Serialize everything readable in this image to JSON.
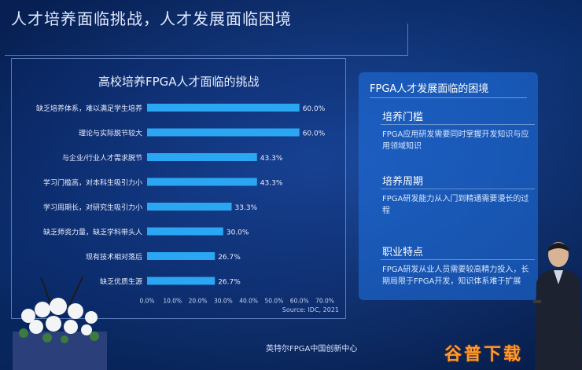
{
  "slide": {
    "title": "人才培养面临挑战，人才发展面临困境",
    "footer": "英特尔FPGA中国创新中心"
  },
  "chart": {
    "title": "高校培养FPGA人才面临的挑战",
    "source": "Source: IDC, 2021"
  },
  "chart_data": {
    "type": "bar",
    "orientation": "horizontal",
    "categories": [
      "缺乏培养体系，难以满足学生培养",
      "理论与实际脱节较大",
      "与企业/行业人才需求脱节",
      "学习门槛高，对本科生吸引力小",
      "学习周期长，对研究生吸引力小",
      "缺乏师资力量，缺乏学科带头人",
      "现有技术相对落后",
      "缺乏优质生源"
    ],
    "values": [
      60.0,
      60.0,
      43.3,
      43.3,
      33.3,
      30.0,
      26.7,
      26.7
    ],
    "value_labels": [
      "60.0%",
      "60.0%",
      "43.3%",
      "43.3%",
      "33.3%",
      "30.0%",
      "26.7%",
      "26.7%"
    ],
    "x_ticks": [
      "0.0%",
      "10.0%",
      "20.0%",
      "30.0%",
      "40.0%",
      "50.0%",
      "60.0%",
      "70.0%"
    ],
    "xlim": [
      0,
      70
    ],
    "bar_color": "#2aa6f2"
  },
  "info": {
    "title": "FPGA人才发展面临的困境",
    "sections": [
      {
        "heading": "培养门槛",
        "body": "FPGA应用研发需要同时掌握开发知识与应用领域知识"
      },
      {
        "heading": "培养周期",
        "body": "FPGA研发能力从入门到精通需要漫长的过程"
      },
      {
        "heading": "职业特点",
        "body": "FPGA研发从业人员需要较高精力投入，长期局限于FPGA开发，知识体系难于扩展"
      }
    ]
  },
  "watermark": "谷普下载"
}
